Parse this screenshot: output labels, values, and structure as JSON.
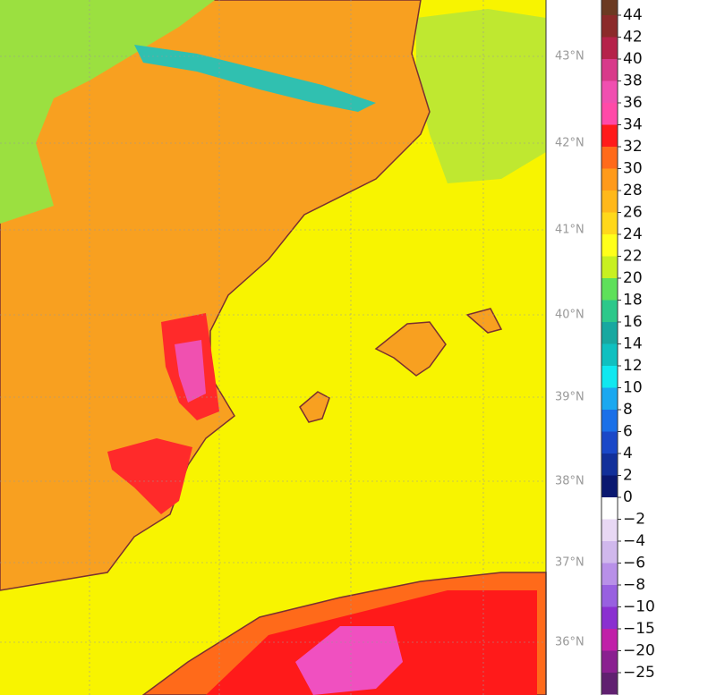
{
  "latitude_labels": [
    "43°N",
    "42°N",
    "41°N",
    "40°N",
    "39°N",
    "38°N",
    "37°N",
    "36°N"
  ],
  "colorbar": {
    "labels": [
      "44",
      "42",
      "40",
      "38",
      "36",
      "34",
      "32",
      "30",
      "28",
      "26",
      "24",
      "22",
      "20",
      "18",
      "16",
      "14",
      "12",
      "10",
      "8",
      "6",
      "4",
      "2",
      "0",
      "−2",
      "−4",
      "−6",
      "−8",
      "−10",
      "−15",
      "−20",
      "−25"
    ],
    "colors": [
      "#6b3a22",
      "#8b2a2a",
      "#b5224a",
      "#d83a8a",
      "#f04fb0",
      "#ff4aa8",
      "#ff1a1a",
      "#ff6a1a",
      "#ff9a1a",
      "#ffb81a",
      "#ffd81a",
      "#ffff1a",
      "#c8f020",
      "#5ee05a",
      "#2cc88a",
      "#18a8a0",
      "#10c0c0",
      "#10e8f0",
      "#1aa8f0",
      "#1a70e8",
      "#1a48c8",
      "#12309a",
      "#0a1870",
      "#ffffff",
      "#e8d8f4",
      "#d0b8ec",
      "#b890e8",
      "#9860e0",
      "#8a30d0",
      "#c020a8",
      "#8a2090",
      "#602070"
    ]
  }
}
